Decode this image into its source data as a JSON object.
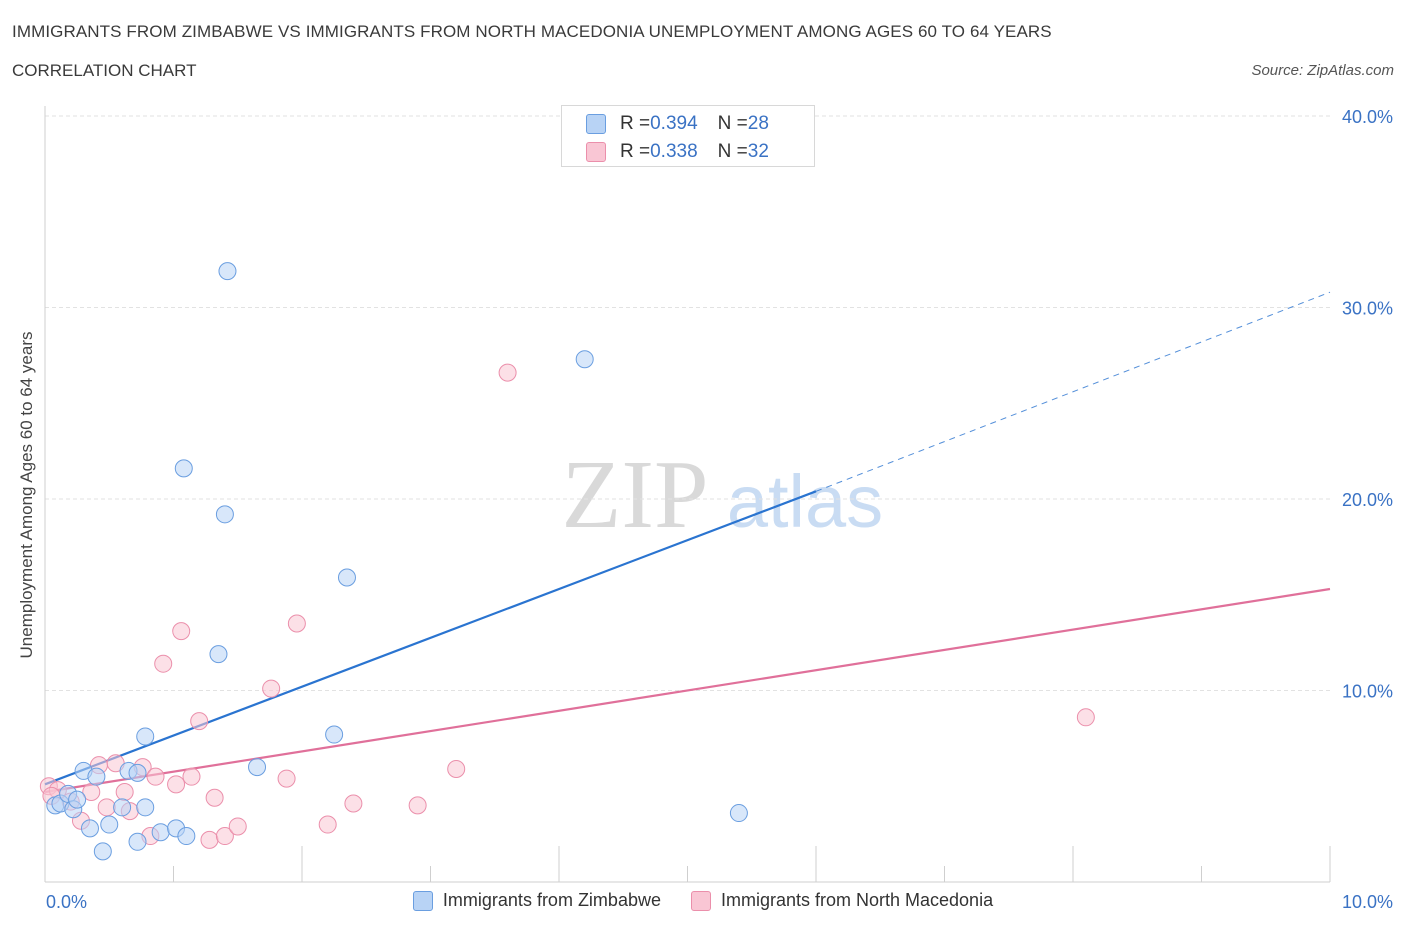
{
  "page": {
    "title": "IMMIGRANTS FROM ZIMBABWE VS IMMIGRANTS FROM NORTH MACEDONIA UNEMPLOYMENT AMONG AGES 60 TO 64 YEARS",
    "subtitle": "CORRELATION CHART",
    "source": "Source: ZipAtlas.com",
    "watermark_zip": "ZIP",
    "watermark_atlas": "atlas"
  },
  "legend_top": {
    "rows": [
      {
        "r_label": "R = ",
        "r_value": "0.394",
        "n_label": "N = ",
        "n_value": "28"
      },
      {
        "r_label": "R = ",
        "r_value": "0.338",
        "n_label": "N = ",
        "n_value": "32"
      }
    ]
  },
  "chart_data": {
    "type": "scatter",
    "title": "IMMIGRANTS FROM ZIMBABWE VS IMMIGRANTS FROM NORTH MACEDONIA UNEMPLOYMENT AMONG AGES 60 TO 64 YEARS",
    "xlabel": "",
    "ylabel": "Unemployment Among Ages 60 to 64 years",
    "xlim": [
      0,
      10
    ],
    "ylim": [
      0,
      40
    ],
    "x_tick_labels": [
      "0.0%",
      "10.0%"
    ],
    "y_tick_values": [
      10,
      20,
      30,
      40
    ],
    "y_tick_labels": [
      "10.0%",
      "20.0%",
      "30.0%",
      "40.0%"
    ],
    "grid": true,
    "legend_position": "top-center",
    "colors": {
      "zimbabwe_fill": "#b8d3f5",
      "zimbabwe_stroke": "#6a9ee0",
      "zimbabwe_line": "#2a74d0",
      "macedonia_fill": "#f9c6d4",
      "macedonia_stroke": "#eb8fab",
      "macedonia_line": "#e0709a",
      "axis_text": "#3a72c4"
    },
    "series": [
      {
        "name": "Immigrants from Zimbabwe",
        "R": 0.394,
        "N": 28,
        "trend": {
          "x0": 0,
          "y0": 5.1,
          "x1": 6.0,
          "y1": 20.4,
          "dash_x1": 10.0,
          "dash_y1": 30.8
        },
        "points": [
          {
            "x": 0.08,
            "y": 4.0
          },
          {
            "x": 0.12,
            "y": 4.1
          },
          {
            "x": 0.18,
            "y": 4.6
          },
          {
            "x": 0.22,
            "y": 3.8
          },
          {
            "x": 0.25,
            "y": 4.3
          },
          {
            "x": 0.35,
            "y": 2.8
          },
          {
            "x": 0.45,
            "y": 1.6
          },
          {
            "x": 0.5,
            "y": 3.0
          },
          {
            "x": 0.3,
            "y": 5.8
          },
          {
            "x": 0.4,
            "y": 5.5
          },
          {
            "x": 0.6,
            "y": 3.9
          },
          {
            "x": 0.65,
            "y": 5.8
          },
          {
            "x": 0.72,
            "y": 5.7
          },
          {
            "x": 0.72,
            "y": 2.1
          },
          {
            "x": 0.78,
            "y": 7.6
          },
          {
            "x": 0.78,
            "y": 3.9
          },
          {
            "x": 0.9,
            "y": 2.6
          },
          {
            "x": 1.02,
            "y": 2.8
          },
          {
            "x": 1.1,
            "y": 2.4
          },
          {
            "x": 1.08,
            "y": 21.6
          },
          {
            "x": 1.4,
            "y": 19.2
          },
          {
            "x": 1.42,
            "y": 31.9
          },
          {
            "x": 1.35,
            "y": 11.9
          },
          {
            "x": 1.65,
            "y": 6.0
          },
          {
            "x": 2.25,
            "y": 7.7
          },
          {
            "x": 2.35,
            "y": 15.9
          },
          {
            "x": 4.2,
            "y": 27.3
          },
          {
            "x": 5.4,
            "y": 3.6
          }
        ]
      },
      {
        "name": "Immigrants from North Macedonia",
        "R": 0.338,
        "N": 32,
        "trend": {
          "x0": 0,
          "y0": 4.7,
          "x1": 10.0,
          "y1": 15.3
        },
        "points": [
          {
            "x": 0.03,
            "y": 5.0
          },
          {
            "x": 0.1,
            "y": 4.8
          },
          {
            "x": 0.2,
            "y": 4.2
          },
          {
            "x": 0.28,
            "y": 3.2
          },
          {
            "x": 0.36,
            "y": 4.7
          },
          {
            "x": 0.42,
            "y": 6.1
          },
          {
            "x": 0.48,
            "y": 3.9
          },
          {
            "x": 0.55,
            "y": 6.2
          },
          {
            "x": 0.62,
            "y": 4.7
          },
          {
            "x": 0.66,
            "y": 3.7
          },
          {
            "x": 0.76,
            "y": 6.0
          },
          {
            "x": 0.82,
            "y": 2.4
          },
          {
            "x": 0.86,
            "y": 5.5
          },
          {
            "x": 0.92,
            "y": 11.4
          },
          {
            "x": 1.02,
            "y": 5.1
          },
          {
            "x": 1.06,
            "y": 13.1
          },
          {
            "x": 1.14,
            "y": 5.5
          },
          {
            "x": 1.2,
            "y": 8.4
          },
          {
            "x": 1.28,
            "y": 2.2
          },
          {
            "x": 1.32,
            "y": 4.4
          },
          {
            "x": 1.4,
            "y": 2.4
          },
          {
            "x": 1.5,
            "y": 2.9
          },
          {
            "x": 1.76,
            "y": 10.1
          },
          {
            "x": 1.88,
            "y": 5.4
          },
          {
            "x": 1.96,
            "y": 13.5
          },
          {
            "x": 2.2,
            "y": 3.0
          },
          {
            "x": 2.4,
            "y": 4.1
          },
          {
            "x": 2.9,
            "y": 4.0
          },
          {
            "x": 3.2,
            "y": 5.9
          },
          {
            "x": 3.6,
            "y": 26.6
          },
          {
            "x": 8.1,
            "y": 8.6
          },
          {
            "x": 0.05,
            "y": 4.5
          }
        ]
      }
    ]
  }
}
